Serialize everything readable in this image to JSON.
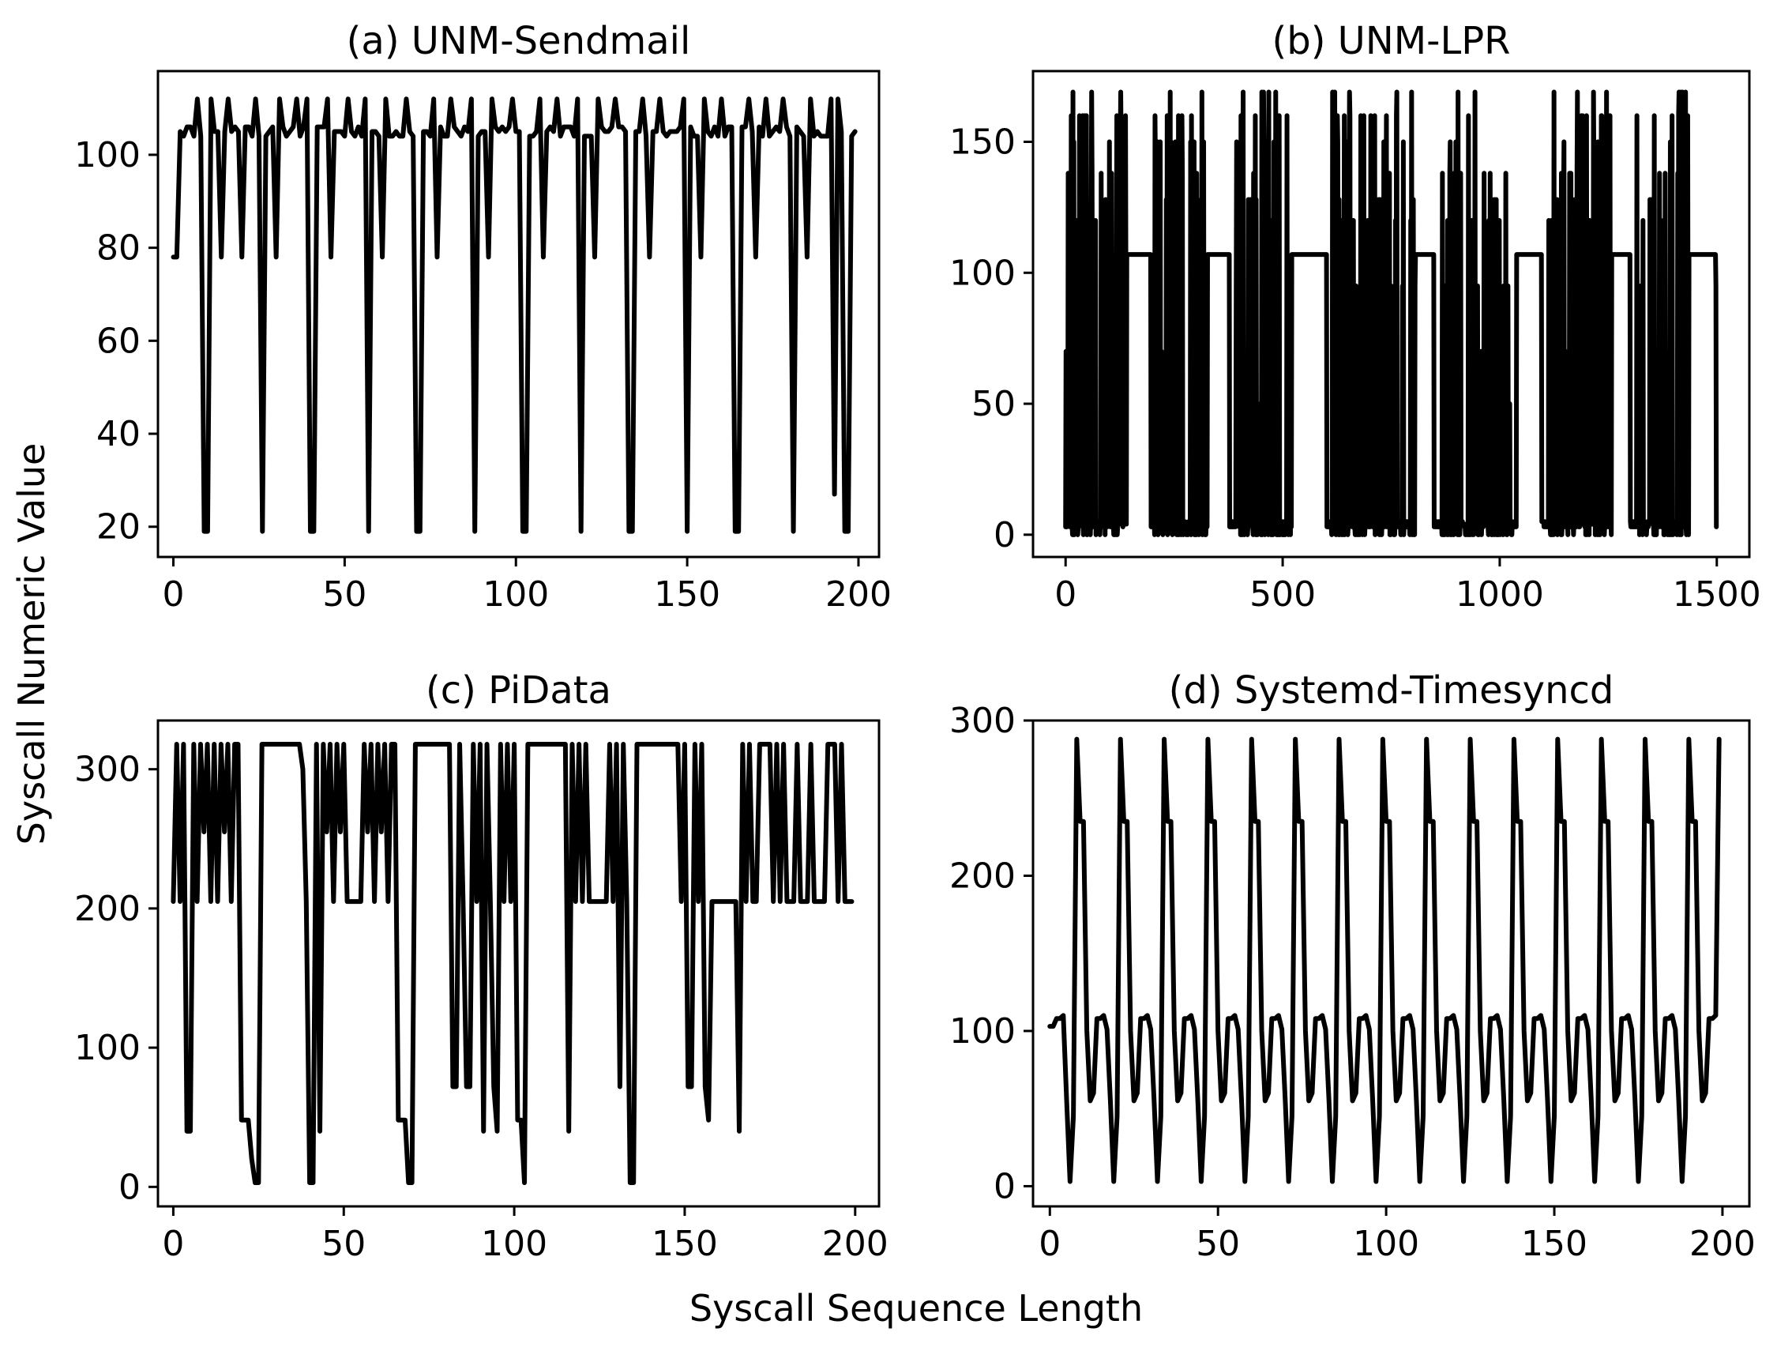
{
  "figure": {
    "xlabel": "Syscall Sequence Length",
    "ylabel": "Syscall Numeric Value",
    "line_color": "#000000"
  },
  "chart_data": [
    {
      "type": "line",
      "title": "(a) UNM-Sendmail",
      "xlim": [
        -4.5,
        206
      ],
      "ylim": [
        13.5,
        118
      ],
      "xticks": [
        0,
        50,
        100,
        150,
        200
      ],
      "yticks": [
        20,
        40,
        60,
        80,
        100
      ],
      "series": [
        {
          "name": "UNM-Sendmail",
          "pattern": "sendmail",
          "points": 200,
          "values_present": [
            19,
            27,
            78,
            104,
            105,
            106,
            112
          ],
          "x_range": [
            0,
            199
          ]
        }
      ]
    },
    {
      "type": "line",
      "title": "(b) UNM-LPR",
      "xlim": [
        -75,
        1575
      ],
      "ylim": [
        -8.5,
        177
      ],
      "xticks": [
        0,
        500,
        1000,
        1500
      ],
      "yticks": [
        0,
        50,
        100,
        150
      ],
      "series": [
        {
          "name": "UNM-LPR",
          "pattern": "lpr",
          "points": 1500,
          "values_present": [
            0,
            3,
            5,
            50,
            70,
            95,
            107,
            120,
            128,
            138,
            150,
            160,
            169
          ],
          "x_range": [
            0,
            1499
          ]
        }
      ]
    },
    {
      "type": "line",
      "title": "(c) PiData",
      "xlim": [
        -4.5,
        207
      ],
      "ylim": [
        -14,
        335
      ],
      "xticks": [
        0,
        50,
        100,
        150,
        200
      ],
      "yticks": [
        0,
        100,
        200,
        300
      ],
      "series": [
        {
          "name": "PiData",
          "pattern": "pidata",
          "points": 200,
          "values_present": [
            3,
            40,
            48,
            72,
            205,
            255,
            300,
            318
          ],
          "x_range": [
            0,
            199
          ]
        }
      ]
    },
    {
      "type": "line",
      "title": "(d) Systemd-Timesyncd",
      "xlim": [
        -5,
        208
      ],
      "ylim": [
        -13,
        300
      ],
      "xticks": [
        0,
        50,
        100,
        150,
        200
      ],
      "yticks": [
        0,
        100,
        200,
        300
      ],
      "series": [
        {
          "name": "Systemd-Timesyncd",
          "pattern": "timesyncd",
          "points": 200,
          "values_present": [
            3,
            45,
            55,
            60,
            101,
            108,
            110,
            235,
            288
          ],
          "x_range": [
            0,
            199
          ]
        }
      ]
    }
  ]
}
